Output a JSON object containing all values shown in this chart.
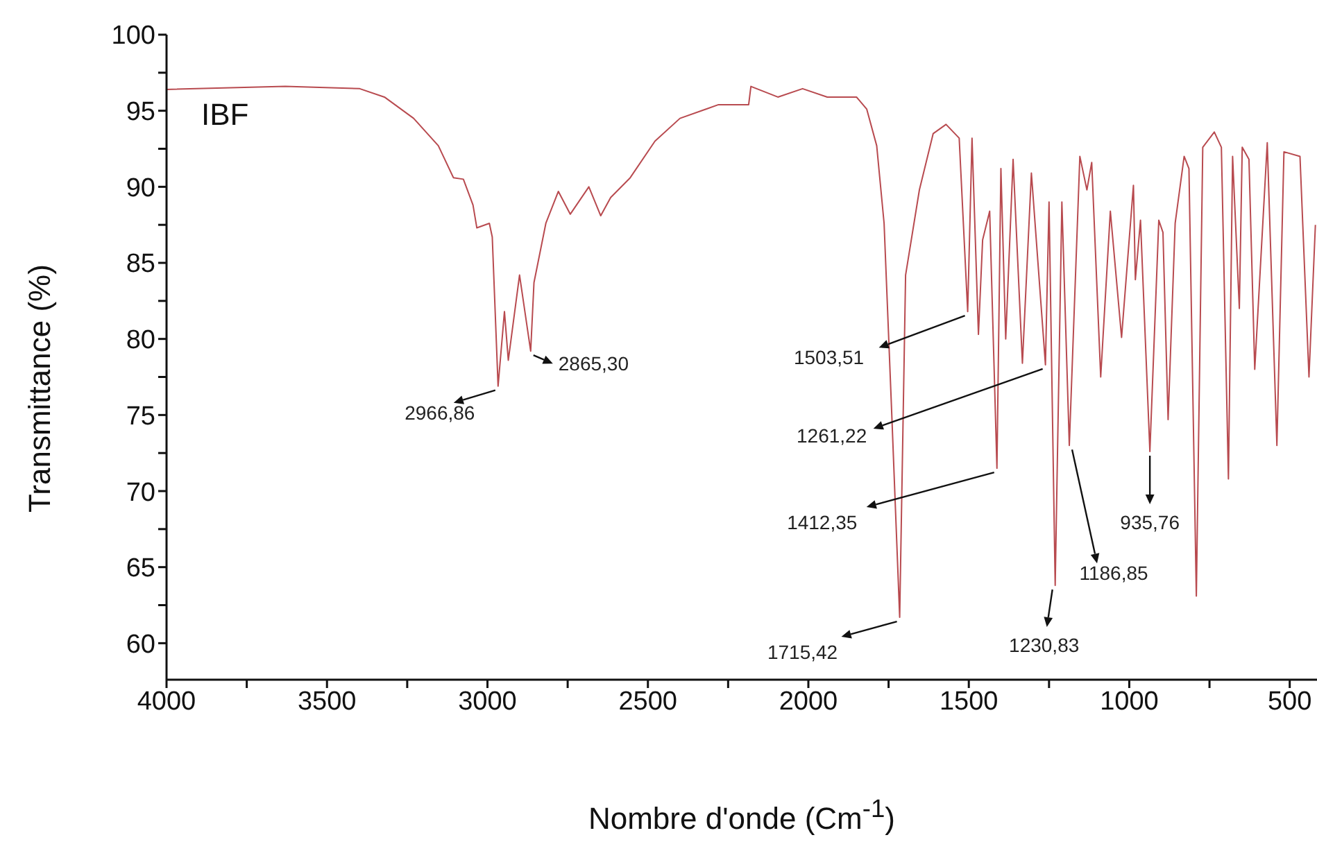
{
  "chart_data": {
    "type": "line",
    "xlabel": "Nombre d'onde (Cm$^{-1}$)",
    "ylabel": "Transmittance (%)",
    "xlim": [
      4000,
      415
    ],
    "ylim": [
      57.6,
      100
    ],
    "xticks": [
      4000,
      {
        "value": 3750,
        "label": null
      },
      3500,
      {
        "value": 3250,
        "label": null
      },
      3000,
      {
        "value": 2750,
        "label": null
      },
      2500,
      {
        "value": 2250,
        "label": null
      },
      2000,
      {
        "value": 1750,
        "label": null
      },
      1500,
      {
        "value": 1250,
        "label": null
      },
      1000,
      {
        "value": 750,
        "label": null
      },
      500
    ],
    "yticks": [
      60,
      {
        "value": 62.5,
        "label": null
      },
      65,
      {
        "value": 67.5,
        "label": null
      },
      70,
      {
        "value": 72.5,
        "label": null
      },
      75,
      {
        "value": 77.5,
        "label": null
      },
      80,
      {
        "value": 82.5,
        "label": null
      },
      85,
      {
        "value": 87.5,
        "label": null
      },
      90,
      {
        "value": 92.5,
        "label": null
      },
      95,
      {
        "value": 97.5,
        "label": null
      },
      100
    ],
    "grid": false,
    "legend": false,
    "marker": "none",
    "line_style": "solid",
    "series": [
      {
        "color": "#b84a4f",
        "x": [
          4000,
          3630,
          3398,
          3321,
          3230,
          3153,
          3106,
          3075,
          3045,
          3033,
          2994,
          2985,
          2966.86,
          2947,
          2935,
          2900,
          2865.3,
          2855,
          2818,
          2779,
          2742,
          2684,
          2647,
          2616,
          2555,
          2478,
          2400,
          2280,
          2186,
          2179,
          2095,
          2018,
          1941,
          1850,
          1818,
          1787,
          1764,
          1740,
          1715.42,
          1697,
          1654,
          1611,
          1571,
          1530,
          1503.51,
          1490,
          1470,
          1457,
          1435,
          1412.35,
          1400,
          1385,
          1362,
          1333,
          1305,
          1261.22,
          1250,
          1230.83,
          1210,
          1186.85,
          1154,
          1132,
          1117,
          1089,
          1059,
          1024,
          987,
          981,
          965,
          935.76,
          908,
          895,
          879,
          857,
          829,
          814,
          791,
          771,
          735,
          713,
          691,
          678,
          657,
          648,
          627,
          609,
          570,
          540,
          518,
          468,
          440,
          420
        ],
        "values": [
          96.4,
          96.6,
          96.45,
          95.9,
          94.5,
          92.7,
          90.6,
          90.5,
          88.8,
          87.3,
          87.6,
          86.7,
          76.9,
          81.8,
          78.6,
          84.2,
          79.2,
          83.7,
          87.6,
          89.7,
          88.2,
          90.0,
          88.1,
          89.3,
          90.6,
          93.0,
          94.5,
          95.4,
          95.4,
          96.6,
          95.9,
          96.45,
          95.9,
          95.9,
          95.1,
          92.7,
          87.6,
          75,
          61.7,
          84.2,
          89.8,
          93.5,
          94.1,
          93.2,
          81.8,
          93.2,
          80.3,
          86.5,
          88.4,
          71.5,
          91.2,
          80.0,
          91.8,
          78.4,
          90.9,
          78.3,
          89.0,
          63.8,
          89.0,
          73.0,
          92.0,
          89.8,
          91.6,
          77.5,
          88.4,
          80.1,
          90.1,
          83.9,
          87.8,
          72.6,
          87.8,
          87.0,
          74.7,
          87.6,
          92.0,
          91.2,
          63.1,
          92.6,
          93.6,
          92.6,
          70.8,
          92.0,
          82.0,
          92.6,
          91.8,
          78.0,
          92.9,
          73.0,
          92.3,
          92.0,
          77.5,
          87.5
        ]
      }
    ],
    "annotations": [
      "IBF",
      {
        "text": "2966,86",
        "x": 2966.86,
        "y": 76.9
      },
      {
        "text": "2865,30",
        "x": 2865.3,
        "y": 79.2
      },
      {
        "text": "1503,51",
        "x": 1503.51,
        "y": 81.8
      },
      {
        "text": "1261,22",
        "x": 1261.22,
        "y": 78.3
      },
      {
        "text": "1412,35",
        "x": 1412.35,
        "y": 71.5
      },
      {
        "text": "1715,42",
        "x": 1715.42,
        "y": 61.7
      },
      {
        "text": "1230,83",
        "x": 1230.83,
        "y": 63.8
      },
      {
        "text": "1186,85",
        "x": 1186.85,
        "y": 73.0
      },
      {
        "text": "935,76",
        "x": 935.76,
        "y": 72.6
      }
    ]
  }
}
